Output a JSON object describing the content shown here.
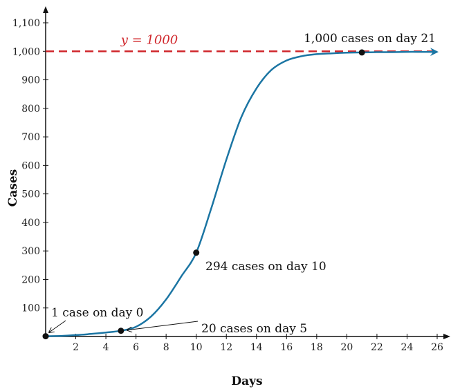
{
  "chart_data": {
    "type": "line",
    "xlabel": "Days",
    "ylabel": "Cases",
    "xlim": [
      0,
      26
    ],
    "ylim": [
      0,
      1100
    ],
    "x_ticks": [
      2,
      4,
      6,
      8,
      10,
      12,
      14,
      16,
      18,
      20,
      22,
      24,
      26
    ],
    "y_ticks": [
      100,
      200,
      300,
      400,
      500,
      600,
      700,
      800,
      900,
      1000,
      1100
    ],
    "y_tick_labels": [
      "100",
      "200",
      "300",
      "400",
      "500",
      "600",
      "700",
      "800",
      "900",
      "1,000",
      "1,100"
    ],
    "grid": false,
    "series": [
      {
        "color": "#1b75a3",
        "x": [
          0,
          1,
          2,
          3,
          4,
          5,
          6,
          7,
          8,
          9,
          10,
          11,
          12,
          13,
          14,
          15,
          16,
          17,
          18,
          19,
          20,
          21,
          22,
          23,
          24,
          25,
          26
        ],
        "y": [
          1,
          2,
          5,
          9,
          14,
          20,
          34,
          70,
          130,
          210,
          294,
          450,
          620,
          770,
          870,
          935,
          968,
          983,
          990,
          993,
          995,
          996,
          997,
          997,
          998,
          998,
          998
        ]
      }
    ],
    "asymptote": {
      "y": 1000,
      "label": "y = 1000",
      "color": "#d0262b"
    },
    "highlighted_points": [
      {
        "x": 0,
        "y": 1,
        "label": "1 case on day 0"
      },
      {
        "x": 5,
        "y": 20,
        "label": "20 cases on day 5"
      },
      {
        "x": 10,
        "y": 294,
        "label": "294 cases on day 10"
      },
      {
        "x": 21,
        "y": 996,
        "label": "1,000 cases on day 21"
      }
    ]
  }
}
